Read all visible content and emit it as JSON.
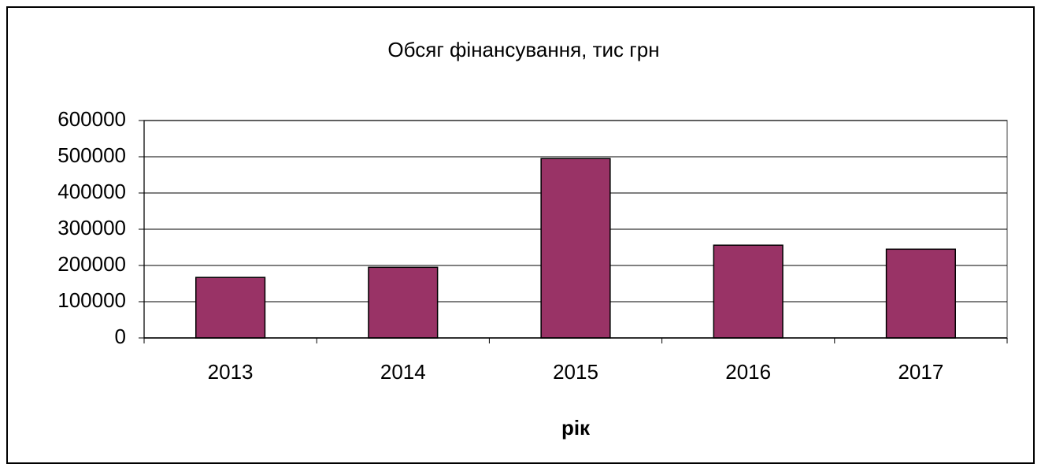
{
  "chart_data": {
    "type": "bar",
    "title": "Обсяг фінансування, тис грн",
    "x_label": "рік",
    "categories": [
      "2013",
      "2014",
      "2015",
      "2016",
      "2017"
    ],
    "values": [
      167000,
      195000,
      495000,
      256000,
      245000
    ],
    "color": "#993366",
    "ylim": [
      0,
      600000
    ],
    "yticks": [
      0,
      100000,
      200000,
      300000,
      400000,
      500000,
      600000
    ],
    "grid": true
  }
}
